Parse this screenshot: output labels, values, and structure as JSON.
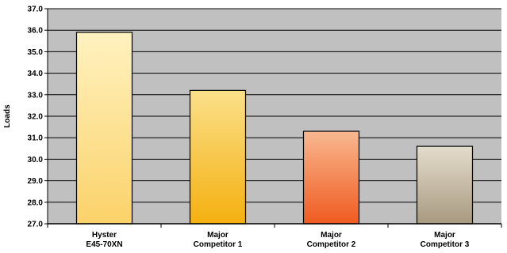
{
  "chart_data": {
    "type": "bar",
    "title": "",
    "xlabel": "",
    "ylabel": "Loads",
    "ylim": [
      27.0,
      37.0
    ],
    "yticks": [
      "27.0",
      "28.0",
      "29.0",
      "30.0",
      "31.0",
      "32.0",
      "33.0",
      "34.0",
      "35.0",
      "36.0",
      "37.0"
    ],
    "grid": true,
    "legend": "none",
    "categories": [
      [
        "Hyster",
        "E45-70XN"
      ],
      [
        "Major",
        "Competitor 1"
      ],
      [
        "Major",
        "Competitor 2"
      ],
      [
        "Major",
        "Competitor 3"
      ]
    ],
    "values": [
      35.9,
      33.2,
      31.3,
      30.6
    ],
    "colors": {
      "plot_background": "#c0c0c0",
      "gridline": "#000000",
      "bar_gradients": [
        [
          "#fff2c0",
          "#fbd26a"
        ],
        [
          "#fbe08a",
          "#f4b010"
        ],
        [
          "#f8b890",
          "#f05a20"
        ],
        [
          "#e4dccc",
          "#a89a80"
        ]
      ]
    }
  }
}
